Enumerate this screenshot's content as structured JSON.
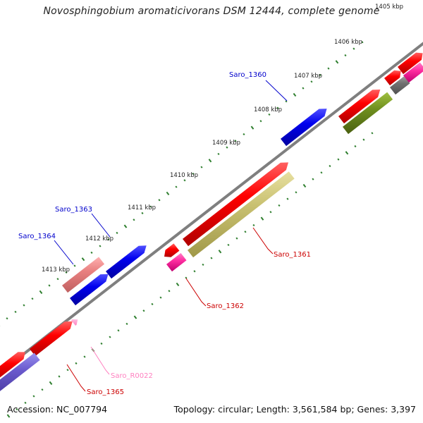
{
  "title": "Novosphingobium aromaticivorans DSM 12444, complete genome",
  "footer": {
    "accession": "Accession: NC_007794",
    "summary": "Topology: circular; Length: 3,561,584 bp; Genes: 3,397"
  },
  "colors": {
    "backbone": "#7f7f7f",
    "tick": "#2f7f2f",
    "cds": "#ff0000",
    "pseudo": "#e88080",
    "blue": "#0000ee",
    "olive": "#6f8f1f",
    "khaki": "#c8c070",
    "magenta": "#ff2ea0",
    "purple": "#6a5acd",
    "pink": "#ff8ec8",
    "grey": "#707070"
  },
  "scale_labels": [
    "1405 kbp",
    "1406 kbp",
    "1407 kbp",
    "1408 kbp",
    "1409 kbp",
    "1410 kbp",
    "1411 kbp",
    "1412 kbp",
    "1413 kbp"
  ],
  "gene_labels": [
    {
      "name": "Saro_1360",
      "color": "#0000cc"
    },
    {
      "name": "Saro_1363",
      "color": "#0000cc"
    },
    {
      "name": "Saro_1364",
      "color": "#0000cc"
    },
    {
      "name": "Saro_1361",
      "color": "#cc0000"
    },
    {
      "name": "Saro_1362",
      "color": "#cc0000"
    },
    {
      "name": "Saro_1365",
      "color": "#cc0000"
    },
    {
      "name": "Saro_R0022",
      "color": "#ff80c0"
    }
  ]
}
